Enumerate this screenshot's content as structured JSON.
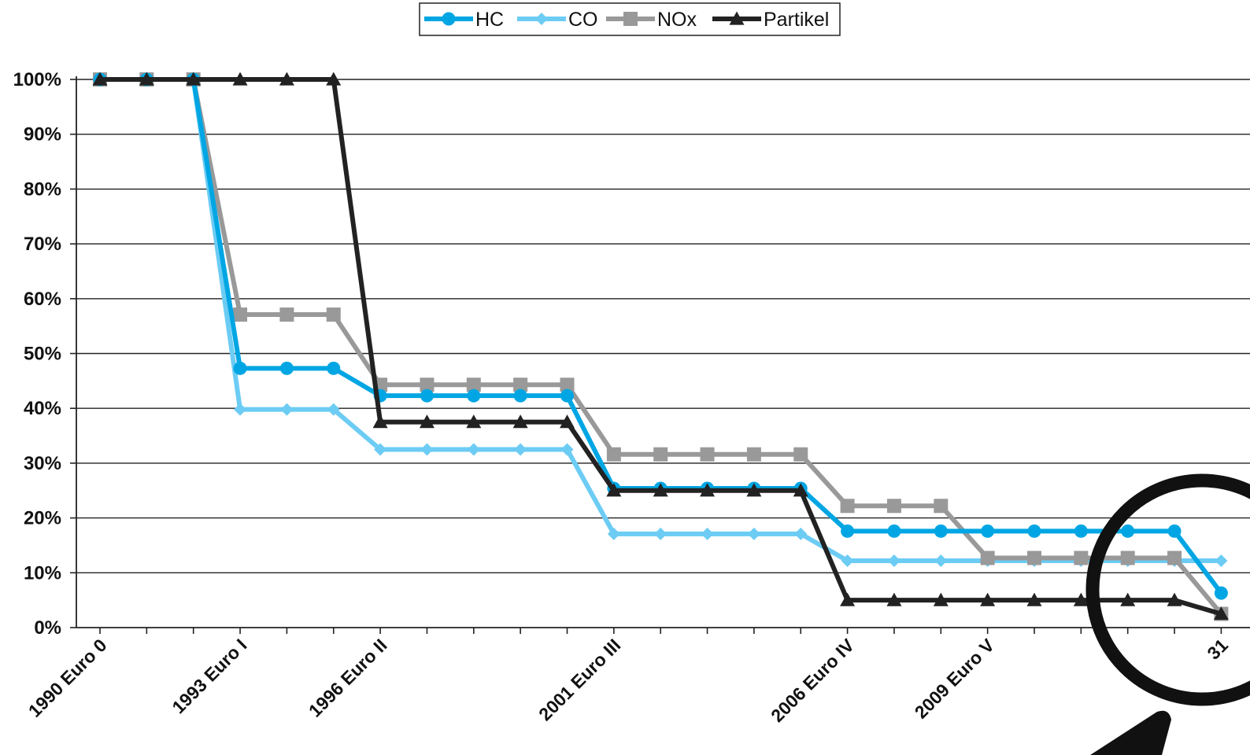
{
  "chart_data": {
    "type": "line",
    "y_ticks": [
      "0%",
      "10%",
      "20%",
      "30%",
      "40%",
      "50%",
      "60%",
      "70%",
      "80%",
      "90%",
      "100%"
    ],
    "ylim": [
      0,
      100
    ],
    "x_count": 25,
    "x_labels": [
      {
        "index": 0,
        "label": "1990 Euro 0"
      },
      {
        "index": 3,
        "label": "1993 Euro I"
      },
      {
        "index": 6,
        "label": "1996 Euro II"
      },
      {
        "index": 11,
        "label": "2001 Euro III"
      },
      {
        "index": 16,
        "label": "2006 Euro IV"
      },
      {
        "index": 19,
        "label": "2009 Euro V"
      },
      {
        "index": 24,
        "label": "31"
      }
    ],
    "grid": true,
    "legend_position": "top-center",
    "series": [
      {
        "name": "HC",
        "color": "#00a6e3",
        "marker": "circle",
        "values": [
          100,
          100,
          100,
          47.3,
          47.3,
          47.3,
          42.3,
          42.3,
          42.3,
          42.3,
          42.3,
          25.4,
          25.4,
          25.4,
          25.4,
          25.4,
          17.6,
          17.6,
          17.6,
          17.6,
          17.6,
          17.6,
          17.6,
          17.6,
          6.3
        ]
      },
      {
        "name": "CO",
        "color": "#6cccf4",
        "marker": "diamond",
        "values": [
          100,
          100,
          100,
          39.8,
          39.8,
          39.8,
          32.5,
          32.5,
          32.5,
          32.5,
          32.5,
          17.1,
          17.1,
          17.1,
          17.1,
          17.1,
          12.2,
          12.2,
          12.2,
          12.2,
          12.2,
          12.2,
          12.2,
          12.2,
          12.2
        ]
      },
      {
        "name": "NOx",
        "color": "#999999",
        "marker": "square",
        "values": [
          100,
          100,
          100,
          57.1,
          57.1,
          57.1,
          44.3,
          44.3,
          44.3,
          44.3,
          44.3,
          31.6,
          31.6,
          31.6,
          31.6,
          31.6,
          22.2,
          22.2,
          22.2,
          12.7,
          12.7,
          12.7,
          12.7,
          12.7,
          2.5
        ]
      },
      {
        "name": "Partikel",
        "color": "#222222",
        "marker": "triangle",
        "values": [
          100,
          100,
          100,
          100,
          100,
          100,
          37.5,
          37.5,
          37.5,
          37.5,
          37.5,
          25,
          25,
          25,
          25,
          25,
          5,
          5,
          5,
          5,
          5,
          5,
          5,
          5,
          2.5
        ]
      }
    ]
  }
}
